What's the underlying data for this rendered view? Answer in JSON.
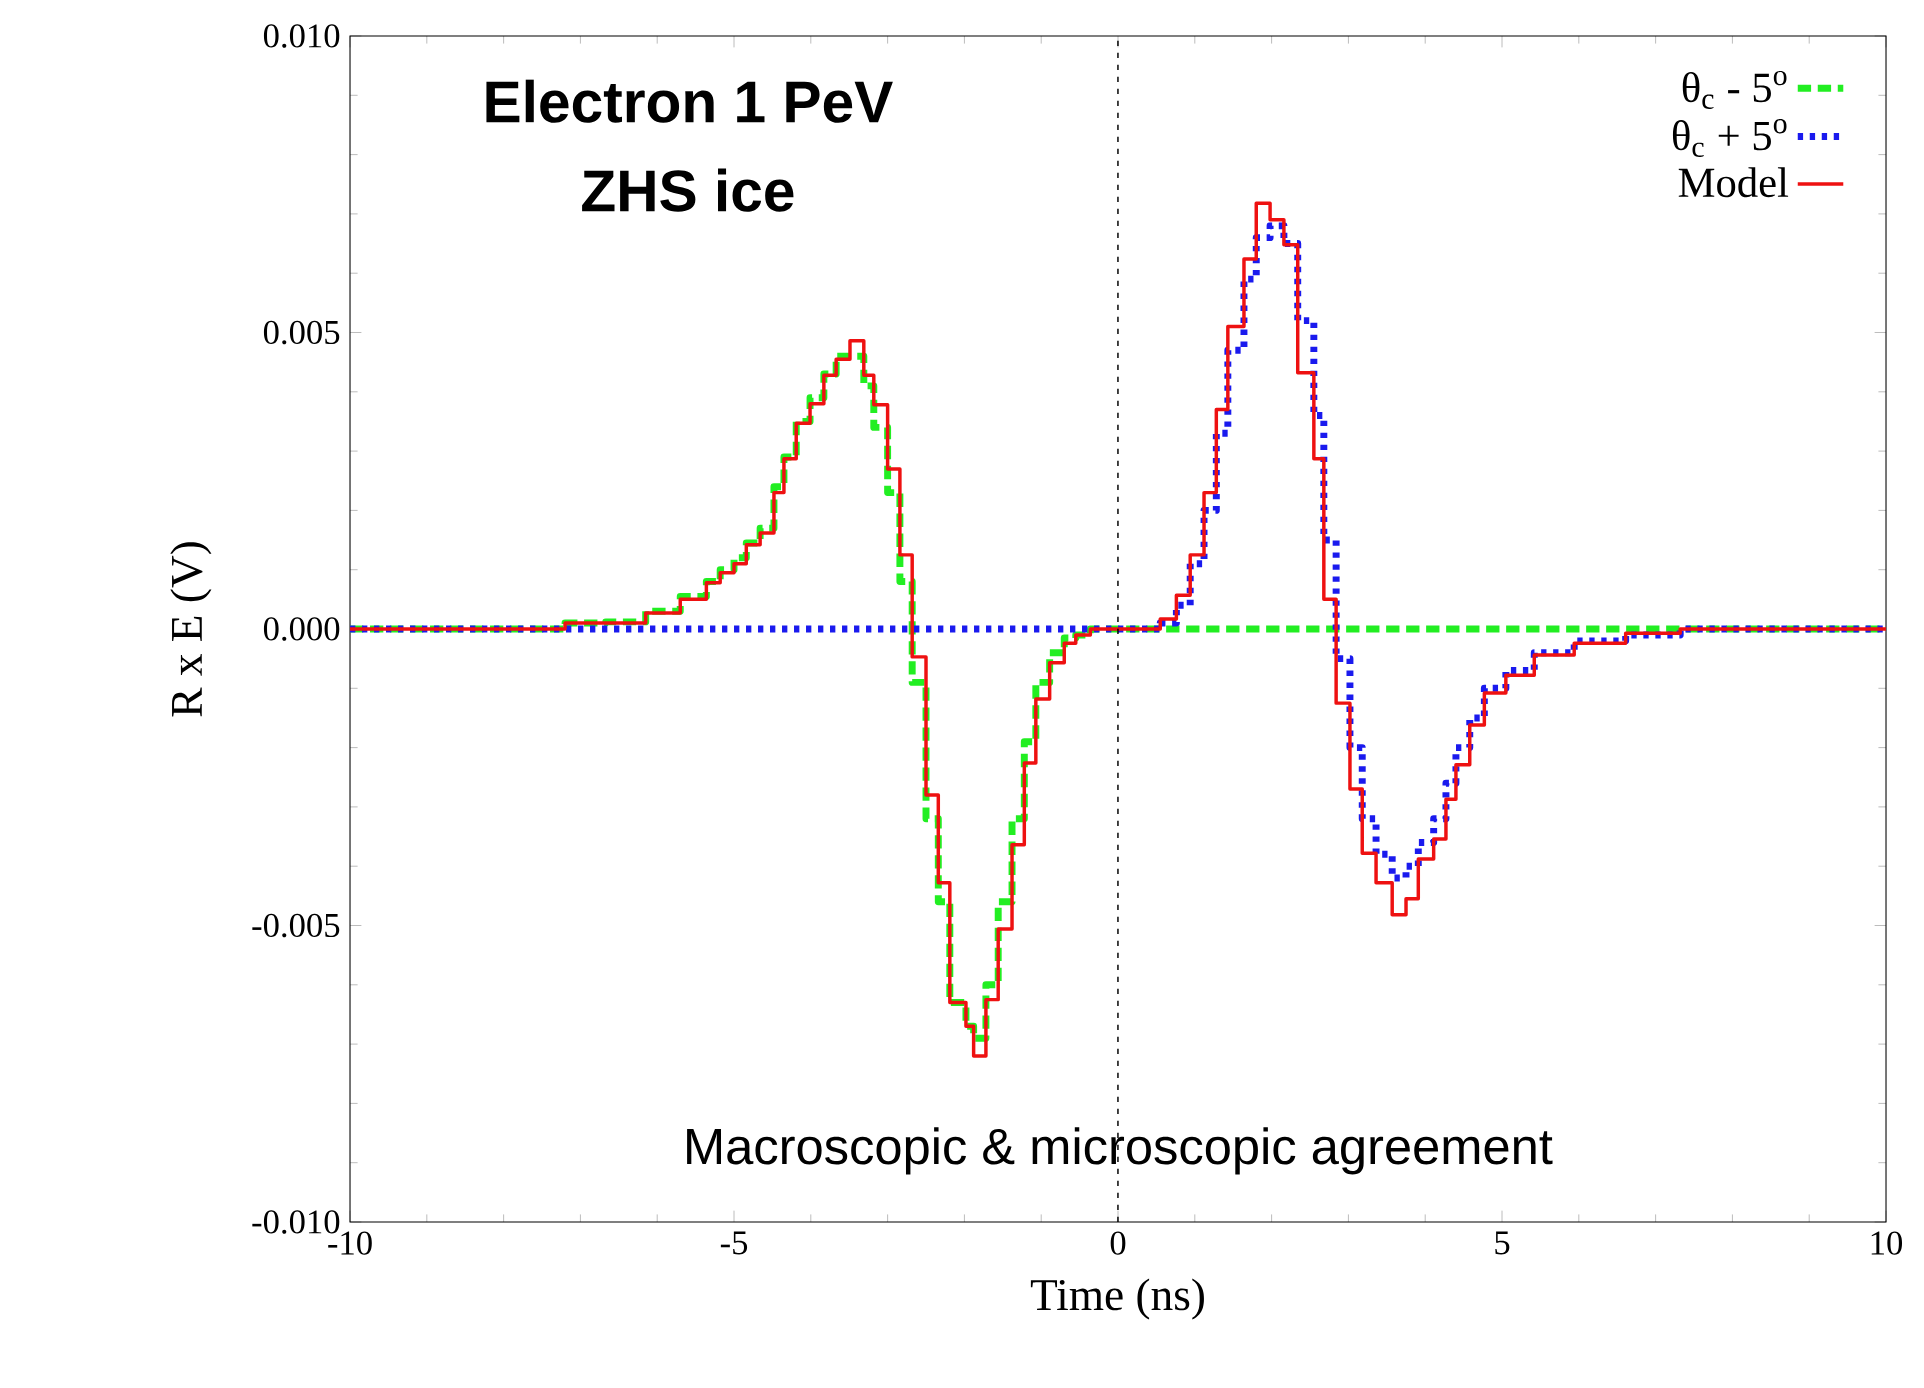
{
  "chart_data": {
    "type": "step",
    "xlabel": "Time (ns)",
    "ylabel": "R x E (V)",
    "annotations": [
      "**Electron 1 PeV**",
      "**ZHS ice**",
      "Macroscopic & microscopic agreement"
    ],
    "xlim": [
      -10,
      10
    ],
    "ylim": [
      -0.01,
      0.01
    ],
    "xticks": [
      -10,
      -5,
      0,
      5,
      10
    ],
    "yticks": [
      {
        "value": -0.01,
        "label": "-0.010"
      },
      {
        "value": -0.005,
        "label": "-0.005"
      },
      {
        "value": 0,
        "label": "0.000"
      },
      {
        "value": 0.005,
        "label": "0.005"
      },
      {
        "value": 0.01,
        "label": "0.010"
      }
    ],
    "legend": "top right",
    "grid": false,
    "ref_lines": [
      {
        "axis": "x",
        "value": 0,
        "color": "#000000",
        "line_style": "dotted"
      }
    ],
    "series": [
      {
        "name": "θ$_{c}$ - 5$^{o}$",
        "color": "#22ee22",
        "line_style": "dashed",
        "x": [
          -10,
          -7.2,
          -6.67,
          -6.15,
          -5.7,
          -5.36,
          -5.18,
          -5.0,
          -4.84,
          -4.66,
          -4.48,
          -4.35,
          -4.19,
          -4.01,
          -3.83,
          -3.67,
          -3.49,
          -3.31,
          -3.18,
          -3.0,
          -2.84,
          -2.68,
          -2.5,
          -2.34,
          -2.19,
          -1.98,
          -1.88,
          -1.72,
          -1.56,
          -1.38,
          -1.22,
          -1.07,
          -0.89,
          -0.7,
          -0.55,
          -0.36,
          10
        ],
        "values": [
          0,
          0.0001,
          0.00012,
          0.0003,
          0.00055,
          0.0008,
          0.001,
          0.0012,
          0.00145,
          0.0017,
          0.0024,
          0.0029,
          0.0035,
          0.0039,
          0.0043,
          0.0046,
          0.0046,
          0.0041,
          0.0034,
          0.0023,
          0.0008,
          -0.0009,
          -0.0032,
          -0.0046,
          -0.0063,
          -0.0067,
          -0.0069,
          -0.006,
          -0.0046,
          -0.0032,
          -0.0019,
          -0.0009,
          -0.0004,
          -0.00015,
          -0.0001,
          0,
          0
        ]
      },
      {
        "name": "θ$_{c}$ + 5$^{o}$",
        "color": "#1a1aee",
        "line_style": "dotted",
        "x": [
          -10,
          0.55,
          0.76,
          0.94,
          1.12,
          1.28,
          1.43,
          1.64,
          1.8,
          1.98,
          2.16,
          2.34,
          2.55,
          2.68,
          2.84,
          3.02,
          3.18,
          3.36,
          3.57,
          3.75,
          3.91,
          4.11,
          4.27,
          4.4,
          4.58,
          4.77,
          5.05,
          5.42,
          5.94,
          6.61,
          7.32,
          10
        ],
        "values": [
          0,
          0.0001,
          0.0004,
          0.0011,
          0.002,
          0.0033,
          0.0047,
          0.0059,
          0.0066,
          0.0068,
          0.0065,
          0.0052,
          0.0036,
          0.0015,
          -0.0005,
          -0.002,
          -0.0032,
          -0.0038,
          -0.0042,
          -0.004,
          -0.0036,
          -0.0032,
          -0.0026,
          -0.002,
          -0.0015,
          -0.001,
          -0.0007,
          -0.0004,
          -0.0002,
          -0.0001,
          0,
          0
        ]
      },
      {
        "name": "Model",
        "color": "#ee1111",
        "line_style": "solid",
        "x": [
          -10,
          -7.2,
          -6.67,
          -6.15,
          -5.7,
          -5.36,
          -5.18,
          -5.0,
          -4.84,
          -4.66,
          -4.48,
          -4.35,
          -4.19,
          -4.01,
          -3.83,
          -3.67,
          -3.49,
          -3.31,
          -3.18,
          -3.0,
          -2.84,
          -2.68,
          -2.5,
          -2.34,
          -2.19,
          -1.98,
          -1.88,
          -1.72,
          -1.56,
          -1.38,
          -1.22,
          -1.07,
          -0.89,
          -0.7,
          -0.55,
          -0.36,
          0.55,
          0.76,
          0.94,
          1.12,
          1.28,
          1.43,
          1.64,
          1.8,
          1.98,
          2.16,
          2.34,
          2.55,
          2.68,
          2.84,
          3.02,
          3.18,
          3.36,
          3.57,
          3.75,
          3.91,
          4.11,
          4.27,
          4.4,
          4.58,
          4.77,
          5.05,
          5.42,
          5.94,
          6.61,
          7.32,
          10
        ],
        "values": [
          0,
          0.0001,
          0.0001,
          0.00027,
          0.0005,
          0.00078,
          0.00095,
          0.0011,
          0.00142,
          0.00162,
          0.0023,
          0.00287,
          0.00347,
          0.0038,
          0.00428,
          0.00455,
          0.00486,
          0.00428,
          0.00378,
          0.0027,
          0.00125,
          -0.00047,
          -0.0028,
          -0.00428,
          -0.0063,
          -0.0067,
          -0.0072,
          -0.00625,
          -0.00506,
          -0.00364,
          -0.00226,
          -0.00118,
          -0.00057,
          -0.00024,
          -0.0001,
          0,
          0.00017,
          0.00057,
          0.00125,
          0.0023,
          0.0037,
          0.0051,
          0.00624,
          0.00718,
          0.0069,
          0.00648,
          0.00432,
          0.00287,
          0.0005,
          -0.00125,
          -0.0027,
          -0.00378,
          -0.00428,
          -0.00482,
          -0.00455,
          -0.00388,
          -0.00354,
          -0.00287,
          -0.00229,
          -0.00162,
          -0.00108,
          -0.00078,
          -0.00044,
          -0.00024,
          -7e-05,
          0,
          0
        ]
      }
    ]
  }
}
